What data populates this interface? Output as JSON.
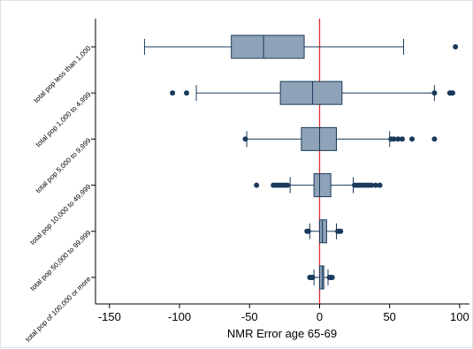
{
  "chart_data": {
    "type": "box",
    "orientation": "horizontal",
    "title": "",
    "xlabel": "NMR Error age 65-69",
    "ylabel": "",
    "xlim": [
      -160,
      107
    ],
    "xticks": [
      -150,
      -100,
      -50,
      0,
      50,
      100
    ],
    "xtick_labels": [
      "-150",
      "-100",
      "-50",
      "0",
      "50",
      "100"
    ],
    "reference_line": {
      "x": 0,
      "color": "#e03030"
    },
    "grid": false,
    "legend": "none",
    "box_color": "#8ea2b8",
    "outlier_color": "#1a3a5c",
    "categories": [
      {
        "label": "total pop less than 1,000",
        "whisker_low": -125,
        "q1": -63,
        "median": -40,
        "q3": -11,
        "whisker_high": 60,
        "outliers": [
          97
        ]
      },
      {
        "label": "total pop 1,000 to 4,999",
        "whisker_low": -88,
        "q1": -28,
        "median": -5,
        "q3": 16,
        "whisker_high": 82,
        "outliers": [
          -105,
          -95,
          82,
          93,
          94,
          95
        ]
      },
      {
        "label": "total pop 5,000 to 9,999",
        "whisker_low": -52,
        "q1": -13,
        "median": 0,
        "q3": 12,
        "whisker_high": 50,
        "outliers": [
          -53,
          51,
          53,
          56,
          59,
          66,
          82
        ]
      },
      {
        "label": "total pop 10,000 to 49,999",
        "whisker_low": -21,
        "q1": -4,
        "median": 0,
        "q3": 8,
        "whisker_high": 24,
        "outliers": [
          -45,
          -33,
          -31,
          -29,
          -27,
          -25,
          -23,
          25,
          27,
          29,
          31,
          33,
          35,
          37,
          40,
          43
        ]
      },
      {
        "label": "total pop 50,000 to 99,999",
        "whisker_low": -7,
        "q1": 0,
        "median": 2,
        "q3": 5,
        "whisker_high": 12,
        "outliers": [
          -9,
          -8,
          13,
          14,
          15
        ]
      },
      {
        "label": "total pop of 100,000 or more",
        "whisker_low": -4,
        "q1": 0,
        "median": 2,
        "q3": 3,
        "whisker_high": 6,
        "outliers": [
          -7,
          -6,
          -5,
          7,
          8,
          9
        ]
      }
    ]
  }
}
